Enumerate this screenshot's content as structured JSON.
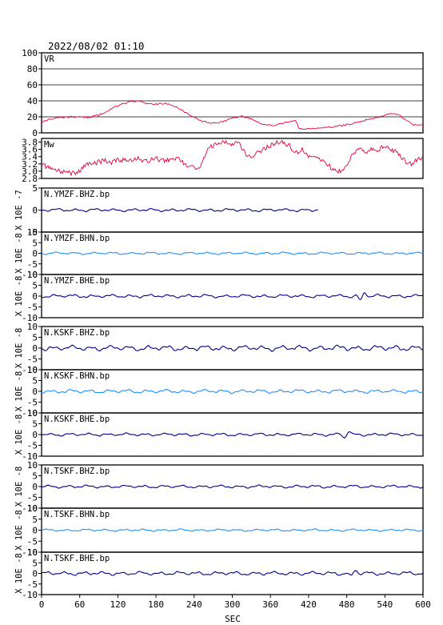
{
  "header": {
    "title": "2022/08/02 01:10"
  },
  "x_axis": {
    "label": "SEC",
    "range": [
      0,
      600
    ],
    "ticks": [
      "0",
      "60",
      "120",
      "180",
      "240",
      "300",
      "360",
      "420",
      "480",
      "540",
      "600"
    ]
  },
  "chart_data": [
    {
      "type": "line",
      "panel": "VR",
      "title": "VR",
      "color": "#e8003c",
      "ylim": [
        0,
        100
      ],
      "yticks": [
        "0",
        "20",
        "40",
        "60",
        "80",
        "100"
      ],
      "grid": "horizontal",
      "x": [
        0,
        15,
        30,
        45,
        60,
        75,
        90,
        105,
        120,
        135,
        150,
        165,
        180,
        195,
        210,
        225,
        240,
        255,
        270,
        285,
        300,
        315,
        330,
        345,
        360,
        375,
        390,
        400,
        405,
        420,
        435,
        450,
        465,
        480,
        495,
        510,
        525,
        540,
        555,
        570,
        585,
        600
      ],
      "values": [
        14,
        17,
        19,
        20,
        20,
        19,
        22,
        28,
        34,
        38,
        40,
        36,
        36,
        37,
        33,
        26,
        19,
        14,
        12,
        14,
        18,
        21,
        17,
        12,
        9,
        11,
        14,
        15,
        5,
        5,
        6,
        7,
        8,
        10,
        13,
        16,
        19,
        22,
        25,
        18,
        10,
        9
      ]
    },
    {
      "type": "line",
      "panel": "Mw",
      "title": "Mw",
      "color": "#e8003c",
      "ylim": [
        2.8,
        3.9
      ],
      "yticks": [
        "2.8",
        "3.0",
        "3.2",
        "3.4",
        "3.6",
        "3.8"
      ],
      "x": [
        0,
        10,
        20,
        30,
        40,
        50,
        60,
        70,
        80,
        90,
        100,
        110,
        120,
        130,
        140,
        150,
        160,
        170,
        180,
        190,
        200,
        210,
        220,
        230,
        240,
        250,
        260,
        270,
        280,
        290,
        300,
        310,
        320,
        330,
        340,
        350,
        360,
        370,
        380,
        390,
        400,
        410,
        420,
        430,
        440,
        450,
        460,
        470,
        480,
        490,
        500,
        510,
        520,
        530,
        540,
        550,
        560,
        570,
        580,
        590,
        600
      ],
      "values": [
        3.2,
        3.1,
        3.0,
        3.0,
        2.95,
        2.95,
        3.0,
        3.2,
        3.2,
        3.25,
        3.3,
        3.25,
        3.3,
        3.3,
        3.3,
        3.35,
        3.3,
        3.3,
        3.35,
        3.3,
        3.3,
        3.35,
        3.3,
        3.1,
        3.1,
        3.1,
        3.6,
        3.7,
        3.8,
        3.8,
        3.75,
        3.8,
        3.5,
        3.4,
        3.5,
        3.6,
        3.7,
        3.8,
        3.8,
        3.7,
        3.5,
        3.6,
        3.4,
        3.4,
        3.3,
        3.2,
        3.0,
        3.0,
        3.1,
        3.5,
        3.6,
        3.5,
        3.6,
        3.6,
        3.7,
        3.6,
        3.5,
        3.3,
        3.2,
        3.3,
        3.4
      ]
    },
    {
      "type": "line",
      "panel": "trace",
      "title": "N.YMZF.BHZ.bp",
      "color": "#00008b",
      "ylim": [
        -5,
        5
      ],
      "yticks": [
        "-5",
        "0",
        "5"
      ],
      "ylabel": "X 10E -7",
      "amp": 0.35,
      "x_end": 435,
      "seed": 1
    },
    {
      "type": "line",
      "panel": "trace",
      "title": "N.YMZF.BHN.bp",
      "color": "#1e90ff",
      "ylim": [
        -10,
        10
      ],
      "yticks": [
        "-10",
        "-5",
        "0",
        "5",
        "10"
      ],
      "ylabel": "X 10E -8",
      "amp": 0.6,
      "x_end": 600,
      "seed": 2
    },
    {
      "type": "line",
      "panel": "trace",
      "title": "N.YMZF.BHE.bp",
      "color": "#00008b",
      "ylim": [
        -10,
        10
      ],
      "yticks": [
        "-10",
        "-5",
        "0",
        "5",
        "10"
      ],
      "ylabel": "X 10E -8",
      "amp": 0.8,
      "x_end": 600,
      "seed": 3,
      "events": [
        {
          "x": 505,
          "amp": 2.5
        }
      ]
    },
    {
      "type": "line",
      "panel": "trace",
      "title": "N.KSKF.BHZ.bp",
      "color": "#00008b",
      "ylim": [
        -10,
        10
      ],
      "yticks": [
        "-10",
        "-5",
        "0",
        "5",
        "10"
      ],
      "ylabel": "X 10E -8",
      "amp": 1.3,
      "x_end": 600,
      "seed": 4
    },
    {
      "type": "line",
      "panel": "trace",
      "title": "N.KSKF.BHN.bp",
      "color": "#1e90ff",
      "ylim": [
        -10,
        10
      ],
      "yticks": [
        "-10",
        "-5",
        "0",
        "5",
        "10"
      ],
      "ylabel": "X 10E -8",
      "amp": 0.9,
      "x_end": 600,
      "seed": 5
    },
    {
      "type": "line",
      "panel": "trace",
      "title": "N.KSKF.BHE.bp",
      "color": "#00008b",
      "ylim": [
        -10,
        10
      ],
      "yticks": [
        "-10",
        "-5",
        "0",
        "5",
        "10"
      ],
      "ylabel": "X 10E -8",
      "amp": 0.7,
      "x_end": 600,
      "seed": 6,
      "events": [
        {
          "x": 480,
          "amp": 2.0
        }
      ]
    },
    {
      "type": "line",
      "panel": "trace",
      "title": "N.TSKF.BHZ.bp",
      "color": "#00008b",
      "ylim": [
        -10,
        10
      ],
      "yticks": [
        "-10",
        "-5",
        "0",
        "5",
        "10"
      ],
      "ylabel": "X 10E -8",
      "amp": 0.7,
      "x_end": 600,
      "seed": 7
    },
    {
      "type": "line",
      "panel": "trace",
      "title": "N.TSKF.BHN.bp",
      "color": "#1e90ff",
      "ylim": [
        -10,
        10
      ],
      "yticks": [
        "-10",
        "-5",
        "0",
        "5",
        "10"
      ],
      "ylabel": "X 10E -8",
      "amp": 0.55,
      "x_end": 600,
      "seed": 8
    },
    {
      "type": "line",
      "panel": "trace",
      "title": "N.TSKF.BHE.bp",
      "color": "#00008b",
      "ylim": [
        -10,
        10
      ],
      "yticks": [
        "-10",
        "-5",
        "0",
        "5",
        "10"
      ],
      "ylabel": "X 10E -8",
      "amp": 0.9,
      "x_end": 600,
      "seed": 9,
      "events": [
        {
          "x": 490,
          "amp": 2.0
        }
      ]
    }
  ]
}
